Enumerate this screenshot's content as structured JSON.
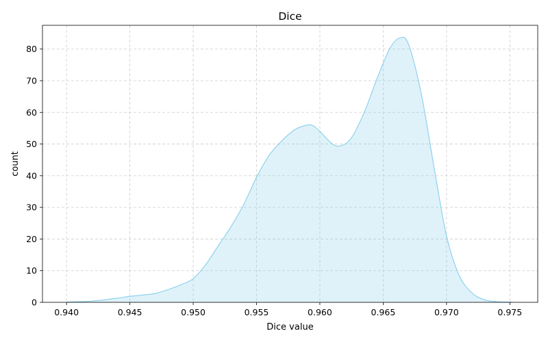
{
  "chart_data": {
    "type": "area",
    "title": "Dice",
    "xlabel": "Dice value",
    "ylabel": "count",
    "xlim": [
      0.9381,
      0.9772
    ],
    "ylim": [
      0,
      87.5
    ],
    "xticks": [
      0.94,
      0.945,
      0.95,
      0.955,
      0.96,
      0.965,
      0.97,
      0.975
    ],
    "xtick_labels": [
      "0.940",
      "0.945",
      "0.950",
      "0.955",
      "0.960",
      "0.965",
      "0.970",
      "0.975"
    ],
    "yticks": [
      0,
      10,
      20,
      30,
      40,
      50,
      60,
      70,
      80
    ],
    "ytick_labels": [
      "0",
      "10",
      "20",
      "30",
      "40",
      "50",
      "60",
      "70",
      "80"
    ],
    "grid": true,
    "colors": {
      "line": "#87ceeb",
      "fill": "#87ceeb",
      "fill_opacity": 0.27
    },
    "series": [
      {
        "x": [
          0.94,
          0.941,
          0.942,
          0.943,
          0.944,
          0.945,
          0.946,
          0.947,
          0.948,
          0.949,
          0.95,
          0.951,
          0.952,
          0.953,
          0.954,
          0.955,
          0.956,
          0.957,
          0.958,
          0.959,
          0.9595,
          0.96,
          0.961,
          0.9617,
          0.9625,
          0.9635,
          0.9645,
          0.9655,
          0.9663,
          0.967,
          0.968,
          0.969,
          0.97,
          0.971,
          0.972,
          0.973,
          0.974,
          0.9752
        ],
        "y": [
          0.1,
          0.2,
          0.4,
          0.8,
          1.3,
          1.9,
          2.3,
          2.8,
          4.0,
          5.5,
          7.5,
          12.0,
          18.0,
          24.0,
          31.0,
          39.5,
          46.5,
          51.0,
          54.5,
          56.0,
          55.7,
          54.0,
          50.0,
          49.5,
          52.0,
          60.0,
          70.5,
          80.0,
          83.5,
          81.5,
          66.0,
          43.0,
          21.0,
          8.5,
          3.0,
          0.8,
          0.2,
          0.05
        ]
      }
    ]
  }
}
